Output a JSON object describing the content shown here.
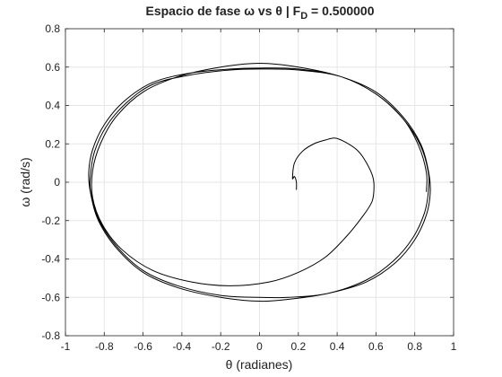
{
  "chart_data": {
    "type": "line",
    "title": {
      "prefix": "Espacio de fase ω vs θ | F",
      "subscript": "D",
      "suffix": " = 0.500000"
    },
    "xlabel": "θ (radianes)",
    "ylabel": "ω (rad/s)",
    "xlim": [
      -1,
      1
    ],
    "ylim": [
      -0.8,
      0.8
    ],
    "xticks": [
      -1,
      -0.8,
      -0.6,
      -0.4,
      -0.2,
      0,
      0.2,
      0.4,
      0.6,
      0.8,
      1
    ],
    "yticks": [
      -0.8,
      -0.6,
      -0.4,
      -0.2,
      0,
      0.2,
      0.4,
      0.6,
      0.8
    ],
    "xtick_labels": [
      "-1",
      "-0.8",
      "-0.6",
      "-0.4",
      "-0.2",
      "0",
      "0.2",
      "0.4",
      "0.6",
      "0.8",
      "1"
    ],
    "ytick_labels": [
      "-0.8",
      "-0.6",
      "-0.4",
      "-0.2",
      "0",
      "0.2",
      "0.4",
      "0.6",
      "0.8"
    ],
    "grid": true,
    "line_color": "#000000",
    "series": [
      {
        "points": [
          [
            0.19,
            -0.04
          ],
          [
            0.19,
            0.0
          ],
          [
            0.18,
            0.03
          ],
          [
            0.17,
            0.02
          ],
          [
            0.18,
            0.1
          ],
          [
            0.22,
            0.16
          ],
          [
            0.28,
            0.2
          ],
          [
            0.34,
            0.22
          ],
          [
            0.39,
            0.23
          ],
          [
            0.44,
            0.21
          ],
          [
            0.5,
            0.17
          ],
          [
            0.54,
            0.12
          ],
          [
            0.58,
            0.04
          ],
          [
            0.59,
            -0.02
          ],
          [
            0.58,
            -0.1
          ],
          [
            0.53,
            -0.18
          ],
          [
            0.45,
            -0.28
          ],
          [
            0.34,
            -0.39
          ],
          [
            0.2,
            -0.47
          ],
          [
            0.05,
            -0.52
          ],
          [
            -0.15,
            -0.54
          ],
          [
            -0.35,
            -0.52
          ],
          [
            -0.55,
            -0.46
          ],
          [
            -0.71,
            -0.35
          ],
          [
            -0.81,
            -0.22
          ],
          [
            -0.86,
            -0.08
          ],
          [
            -0.86,
            0.06
          ],
          [
            -0.82,
            0.2
          ],
          [
            -0.74,
            0.34
          ],
          [
            -0.6,
            0.47
          ],
          [
            -0.42,
            0.55
          ],
          [
            -0.2,
            0.6
          ],
          [
            0.0,
            0.62
          ],
          [
            0.2,
            0.6
          ],
          [
            0.42,
            0.55
          ],
          [
            0.6,
            0.47
          ],
          [
            0.74,
            0.34
          ],
          [
            0.83,
            0.2
          ],
          [
            0.87,
            0.06
          ],
          [
            0.88,
            -0.05
          ],
          [
            0.86,
            -0.17
          ],
          [
            0.8,
            -0.3
          ],
          [
            0.7,
            -0.42
          ],
          [
            0.55,
            -0.52
          ],
          [
            0.35,
            -0.58
          ],
          [
            0.15,
            -0.61
          ],
          [
            0.0,
            -0.62
          ],
          [
            -0.2,
            -0.6
          ],
          [
            -0.42,
            -0.55
          ],
          [
            -0.6,
            -0.47
          ],
          [
            -0.74,
            -0.34
          ],
          [
            -0.83,
            -0.2
          ],
          [
            -0.87,
            -0.06
          ],
          [
            -0.88,
            0.05
          ],
          [
            -0.86,
            0.17
          ],
          [
            -0.8,
            0.3
          ],
          [
            -0.7,
            0.42
          ],
          [
            -0.55,
            0.52
          ],
          [
            -0.35,
            0.57
          ],
          [
            -0.15,
            0.59
          ],
          [
            0.0,
            0.595
          ],
          [
            0.2,
            0.59
          ],
          [
            0.42,
            0.55
          ],
          [
            0.6,
            0.46
          ],
          [
            0.74,
            0.33
          ],
          [
            0.83,
            0.19
          ],
          [
            0.87,
            0.05
          ],
          [
            0.87,
            -0.05
          ],
          [
            0.85,
            -0.16
          ],
          [
            0.79,
            -0.29
          ],
          [
            0.69,
            -0.41
          ],
          [
            0.55,
            -0.51
          ],
          [
            0.35,
            -0.58
          ],
          [
            0.15,
            -0.6
          ],
          [
            0.0,
            -0.6
          ],
          [
            -0.2,
            -0.59
          ],
          [
            -0.42,
            -0.54
          ],
          [
            -0.6,
            -0.46
          ],
          [
            -0.74,
            -0.33
          ],
          [
            -0.83,
            -0.19
          ],
          [
            -0.87,
            -0.05
          ],
          [
            -0.87,
            0.05
          ],
          [
            -0.85,
            0.16
          ],
          [
            -0.79,
            0.29
          ],
          [
            -0.69,
            0.41
          ],
          [
            -0.55,
            0.51
          ],
          [
            -0.35,
            0.56
          ],
          [
            -0.15,
            0.585
          ],
          [
            0.0,
            0.59
          ],
          [
            0.2,
            0.585
          ],
          [
            0.42,
            0.55
          ],
          [
            0.6,
            0.46
          ],
          [
            0.74,
            0.33
          ],
          [
            0.82,
            0.19
          ],
          [
            0.86,
            0.05
          ],
          [
            0.86,
            -0.05
          ]
        ]
      }
    ]
  }
}
